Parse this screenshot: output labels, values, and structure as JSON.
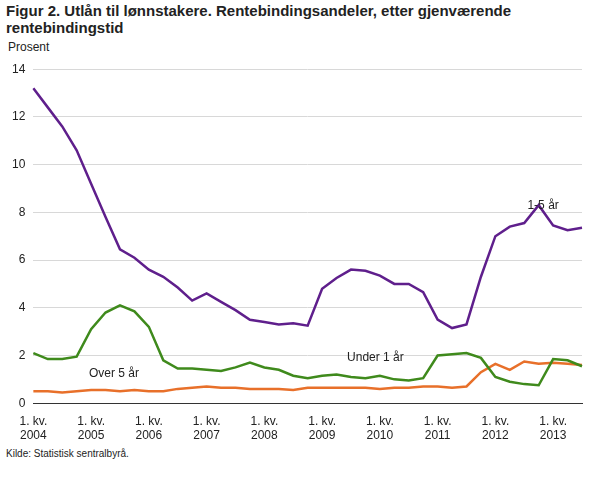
{
  "chart_data": {
    "type": "line",
    "title": "Figur 2. Utlån til lønnstakere. Rentebindingsandeler, etter gjenværende rentebindingstid",
    "y_label": "Prosent",
    "source": "Kilde: Statistisk sentralbyrå.",
    "categories": [
      "1. kv. 2004",
      null,
      null,
      null,
      "1. kv. 2005",
      null,
      null,
      null,
      "1. kv. 2006",
      null,
      null,
      null,
      "1. kv. 2007",
      null,
      null,
      null,
      "1. kv. 2008",
      null,
      null,
      null,
      "1. kv. 2009",
      null,
      null,
      null,
      "1. kv. 2010",
      null,
      null,
      null,
      "1. kv. 2011",
      null,
      null,
      null,
      "1. kv. 2012",
      null,
      null,
      null,
      "1. kv. 2013",
      null,
      null
    ],
    "series": [
      {
        "name": "1-5 år",
        "color": "#5f1f8c",
        "values": [
          13.2,
          12.4,
          11.6,
          10.6,
          9.2,
          7.8,
          6.45,
          6.1,
          5.6,
          5.3,
          4.85,
          4.3,
          4.6,
          4.25,
          3.9,
          3.5,
          3.4,
          3.3,
          3.35,
          3.25,
          4.8,
          5.25,
          5.6,
          5.55,
          5.35,
          5.0,
          5.0,
          4.65,
          3.5,
          3.15,
          3.3,
          5.3,
          7.0,
          7.4,
          7.55,
          8.3,
          7.45,
          7.25,
          7.35
        ]
      },
      {
        "name": "Under 1 år",
        "color": "#3f8a1c",
        "values": [
          2.1,
          1.85,
          1.85,
          1.95,
          3.1,
          3.8,
          4.1,
          3.85,
          3.2,
          1.8,
          1.45,
          1.45,
          1.4,
          1.35,
          1.5,
          1.7,
          1.5,
          1.4,
          1.15,
          1.05,
          1.15,
          1.2,
          1.1,
          1.05,
          1.15,
          1.0,
          0.95,
          1.05,
          2.0,
          2.05,
          2.1,
          1.9,
          1.1,
          0.9,
          0.8,
          0.75,
          1.85,
          1.8,
          1.55
        ]
      },
      {
        "name": "Over 5 år",
        "color": "#e8702a",
        "values": [
          0.5,
          0.5,
          0.45,
          0.5,
          0.55,
          0.55,
          0.5,
          0.55,
          0.5,
          0.5,
          0.6,
          0.65,
          0.7,
          0.65,
          0.65,
          0.6,
          0.6,
          0.6,
          0.55,
          0.65,
          0.65,
          0.65,
          0.65,
          0.65,
          0.6,
          0.65,
          0.65,
          0.7,
          0.7,
          0.65,
          0.7,
          1.3,
          1.65,
          1.4,
          1.75,
          1.65,
          1.7,
          1.65,
          1.6
        ]
      }
    ],
    "ylim": [
      0,
      14
    ],
    "yticks": [
      0,
      2,
      4,
      6,
      8,
      10,
      12,
      14
    ],
    "grid": true
  }
}
